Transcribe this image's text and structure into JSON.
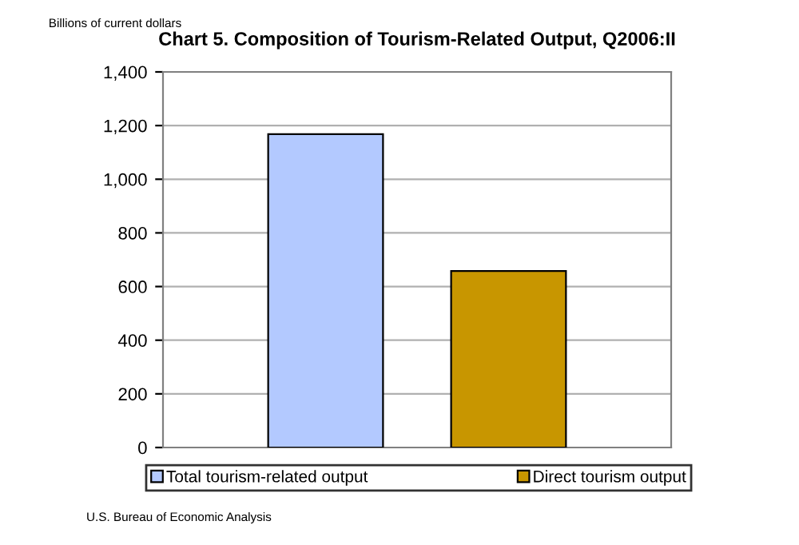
{
  "chart_data": {
    "type": "bar",
    "title": "Chart 5. Composition of Tourism-Related Output, Q2006:II",
    "ylabel": "Billions of current dollars",
    "categories": [
      null
    ],
    "series": [
      {
        "name": "Total tourism-related output",
        "color": "#b3c9ff",
        "values": [
          1168
        ]
      },
      {
        "name": "Direct tourism output",
        "color": "#c89600",
        "values": [
          658
        ]
      }
    ],
    "ylim": [
      0,
      1400
    ],
    "yticks": [
      0,
      {
        "value": 200,
        "label": "200"
      },
      {
        "value": 400,
        "label": "400"
      },
      {
        "value": 600,
        "label": "600"
      },
      {
        "value": 800,
        "label": "800"
      },
      {
        "value": 1000,
        "label": "1,000"
      },
      {
        "value": 1200,
        "label": "1,200"
      },
      {
        "value": 1400,
        "label": "1,400"
      }
    ],
    "grid": "y",
    "legend": "bottom",
    "annotations": [
      "U.S. Bureau of Economic Analysis"
    ]
  }
}
